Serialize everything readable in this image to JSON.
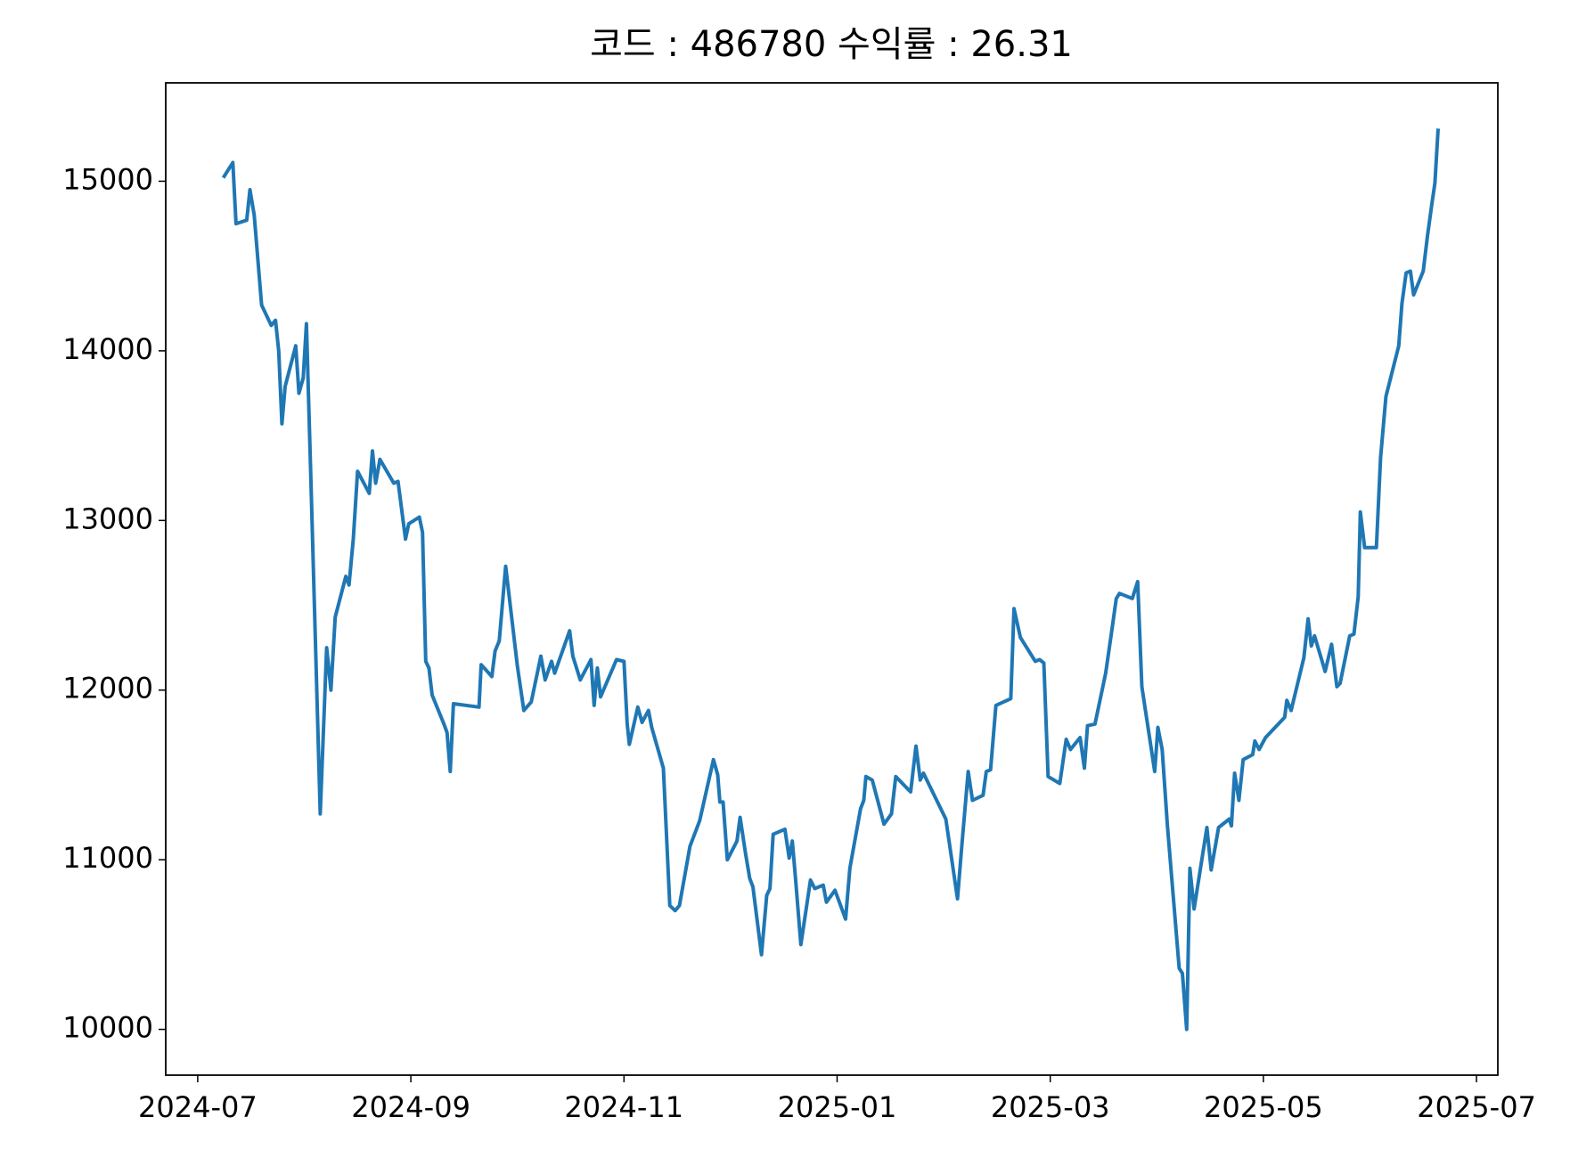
{
  "chart_data": {
    "type": "line",
    "title": "코드 : 486780 수익률 : 26.31",
    "x": [
      0.24,
      0.33,
      0.36,
      0.46,
      0.49,
      0.53,
      0.6,
      0.69,
      0.73,
      0.76,
      0.79,
      0.82,
      0.92,
      0.95,
      0.99,
      1.02,
      1.06,
      1.15,
      1.21,
      1.25,
      1.29,
      1.39,
      1.42,
      1.46,
      1.5,
      1.61,
      1.64,
      1.67,
      1.71,
      1.84,
      1.88,
      1.95,
      1.98,
      2.08,
      2.11,
      2.14,
      2.17,
      2.2,
      2.31,
      2.34,
      2.37,
      2.4,
      2.64,
      2.66,
      2.76,
      2.79,
      2.83,
      2.89,
      3.0,
      3.06,
      3.13,
      3.22,
      3.26,
      3.32,
      3.35,
      3.49,
      3.52,
      3.59,
      3.69,
      3.72,
      3.75,
      3.78,
      3.93,
      4.0,
      4.03,
      4.05,
      4.13,
      4.17,
      4.23,
      4.26,
      4.37,
      4.43,
      4.48,
      4.52,
      4.62,
      4.71,
      4.84,
      4.88,
      4.9,
      4.93,
      4.97,
      5.06,
      5.09,
      5.14,
      5.18,
      5.21,
      5.29,
      5.34,
      5.37,
      5.4,
      5.51,
      5.55,
      5.58,
      5.61,
      5.66,
      5.75,
      5.79,
      5.87,
      5.9,
      5.98,
      6.08,
      6.12,
      6.22,
      6.25,
      6.27,
      6.33,
      6.44,
      6.51,
      6.55,
      6.69,
      6.74,
      6.78,
      6.81,
      7.02,
      7.13,
      7.17,
      7.23,
      7.27,
      7.37,
      7.4,
      7.44,
      7.49,
      7.63,
      7.66,
      7.72,
      7.86,
      7.9,
      7.94,
      7.98,
      8.09,
      8.15,
      8.19,
      8.28,
      8.32,
      8.35,
      8.42,
      8.52,
      8.58,
      8.62,
      8.65,
      8.77,
      8.82,
      8.86,
      8.98,
      9.01,
      9.05,
      9.1,
      9.21,
      9.24,
      9.28,
      9.31,
      9.35,
      9.47,
      9.51,
      9.58,
      9.68,
      9.7,
      9.73,
      9.77,
      9.81,
      9.9,
      9.92,
      9.96,
      10.02,
      10.2,
      10.22,
      10.26,
      10.38,
      10.42,
      10.45,
      10.48,
      10.58,
      10.64,
      10.69,
      10.72,
      10.81,
      10.85,
      10.89,
      10.91,
      10.95,
      11.06,
      11.1,
      11.15,
      11.27,
      11.3,
      11.34,
      11.38,
      11.41,
      11.5,
      11.54,
      11.58,
      11.61,
      11.64
    ],
    "series": [
      {
        "color": "#1f77b4",
        "values": [
          15020,
          15110,
          14750,
          14770,
          14950,
          14800,
          14270,
          14150,
          14180,
          14000,
          13570,
          13790,
          14030,
          13750,
          13840,
          14160,
          13280,
          11270,
          12250,
          12000,
          12430,
          12670,
          12620,
          12890,
          13290,
          13160,
          13410,
          13220,
          13360,
          13220,
          13230,
          12890,
          12980,
          13020,
          12930,
          12170,
          12130,
          11970,
          11800,
          11750,
          11520,
          11920,
          11900,
          12150,
          12080,
          12230,
          12290,
          12730,
          12140,
          11880,
          11930,
          12200,
          12060,
          12170,
          12100,
          12350,
          12200,
          12060,
          12180,
          11910,
          12130,
          11960,
          12180,
          12170,
          11800,
          11680,
          11900,
          11810,
          11880,
          11780,
          11540,
          10730,
          10700,
          10730,
          11080,
          11230,
          11590,
          11500,
          11340,
          11340,
          11000,
          11110,
          11250,
          11040,
          10890,
          10840,
          10440,
          10790,
          10830,
          11150,
          11180,
          11010,
          11110,
          10890,
          10500,
          10880,
          10830,
          10850,
          10750,
          10820,
          10650,
          10950,
          11300,
          11350,
          11490,
          11470,
          11210,
          11270,
          11490,
          11400,
          11670,
          11470,
          11510,
          11240,
          10770,
          11080,
          11520,
          11350,
          11380,
          11520,
          11530,
          11910,
          11950,
          12480,
          12310,
          12170,
          12180,
          12160,
          11490,
          11450,
          11710,
          11650,
          11720,
          11540,
          11790,
          11800,
          12100,
          12360,
          12540,
          12570,
          12540,
          12640,
          12020,
          11520,
          11780,
          11650,
          11200,
          10360,
          10330,
          10000,
          10950,
          10710,
          11190,
          10940,
          11190,
          11240,
          11200,
          11510,
          11350,
          11590,
          11620,
          11700,
          11650,
          11720,
          11840,
          11940,
          11880,
          12190,
          12420,
          12260,
          12320,
          12110,
          12270,
          12020,
          12040,
          12320,
          12330,
          12550,
          13050,
          12840,
          12840,
          13370,
          13730,
          14030,
          14280,
          14460,
          14470,
          14330,
          14470,
          14680,
          14860,
          14990,
          15310
        ]
      }
    ],
    "xlim": [
      -0.3,
      12.2
    ],
    "xticks": [
      {
        "value": 0,
        "label": "2024-07"
      },
      {
        "value": 2,
        "label": "2024-09"
      },
      {
        "value": 4,
        "label": "2024-11"
      },
      {
        "value": 6,
        "label": "2025-01"
      },
      {
        "value": 8,
        "label": "2025-03"
      },
      {
        "value": 10,
        "label": "2025-05"
      },
      {
        "value": 12,
        "label": "2025-07"
      }
    ],
    "ylim": [
      9730,
      15580
    ],
    "yticks": [
      10000,
      11000,
      12000,
      13000,
      14000,
      15000
    ],
    "grid": false
  }
}
